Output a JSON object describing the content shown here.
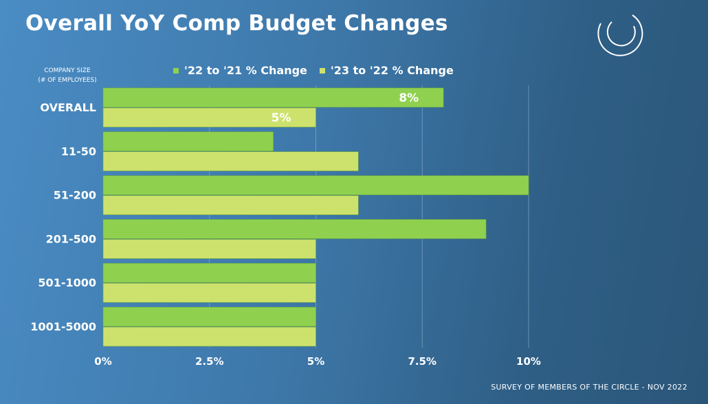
{
  "title": "Overall YoY Comp Budget Changes",
  "axis_caption": {
    "line1": "COMPANY SIZE",
    "line2": "(# OF EMPLOYEES)"
  },
  "source": "SURVEY OF MEMBERS OF THE CIRCLE - NOV 2022",
  "logo_icon": "circle-logo-icon",
  "colors": {
    "series1": "#8fd14f",
    "series2": "#cde26c",
    "grid": "#8fb3cf"
  },
  "chart_data": {
    "type": "bar",
    "orientation": "horizontal",
    "categories": [
      "OVERALL",
      "11-50",
      "51-200",
      "201-500",
      "501-1000",
      "1001-5000"
    ],
    "series": [
      {
        "name": "'22 to '21 % Change",
        "values": [
          8,
          4,
          10,
          9,
          5,
          5
        ],
        "data_labels": [
          "8%",
          null,
          null,
          null,
          null,
          null
        ]
      },
      {
        "name": "'23 to '22 % Change",
        "values": [
          5,
          6,
          6,
          5,
          5,
          5
        ],
        "data_labels": [
          "5%",
          null,
          null,
          null,
          null,
          null
        ]
      }
    ],
    "x_ticks": [
      0,
      2.5,
      5,
      7.5,
      10
    ],
    "x_tick_labels": [
      "0%",
      "2.5%",
      "5%",
      "7.5%",
      "10%"
    ],
    "xlim": [
      0,
      10
    ],
    "grid": "vertical",
    "legend": "top"
  }
}
